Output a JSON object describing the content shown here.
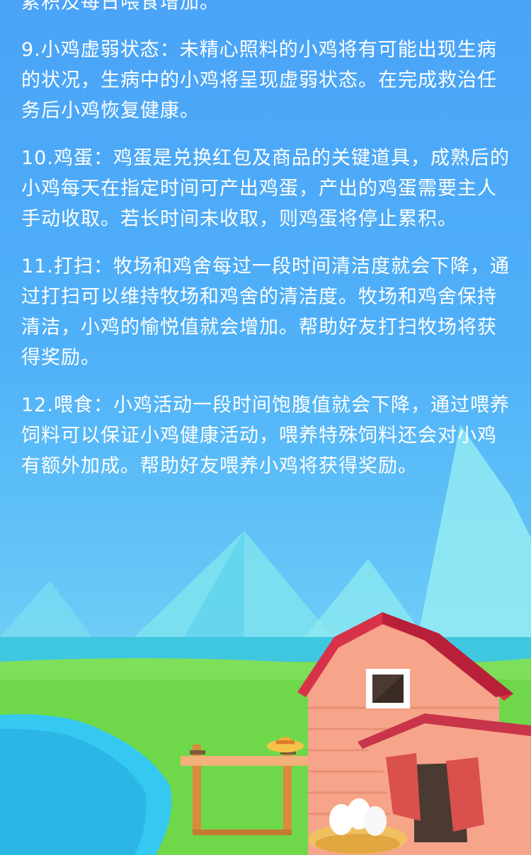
{
  "rules": [
    "累积及每日喂食增加。",
    "9.小鸡虚弱状态：未精心照料的小鸡将有可能出现生病的状况，生病中的小鸡将呈现虚弱状态。在完成救治任务后小鸡恢复健康。",
    "10.鸡蛋：鸡蛋是兑换红包及商品的关键道具，成熟后的小鸡每天在指定时间可产出鸡蛋，产出的鸡蛋需要主人手动收取。若长时间未收取，则鸡蛋将停止累积。",
    "11.打扫：牧场和鸡舍每过一段时间清洁度就会下降，通过打扫可以维持牧场和鸡舍的清洁度。牧场和鸡舍保持清洁，小鸡的愉悦值就会增加。帮助好友打扫牧场将获得奖励。",
    "12.喂食：小鸡活动一段时间饱腹值就会下降，通过喂养饲料可以保证小鸡健康活动，喂养特殊饲料还会对小鸡有额外加成。帮助好友喂养小鸡将获得奖励。"
  ],
  "scene_icons": [
    "mountain-icon",
    "barn-icon",
    "fence-icon",
    "straw-hat-icon",
    "egg-nest-icon",
    "pond-icon"
  ],
  "colors": {
    "sky_top": "#4aa3f7",
    "grass": "#6fd84a",
    "barn_wall": "#f6a48a",
    "barn_roof": "#d8324a",
    "water": "#35c9f2"
  }
}
